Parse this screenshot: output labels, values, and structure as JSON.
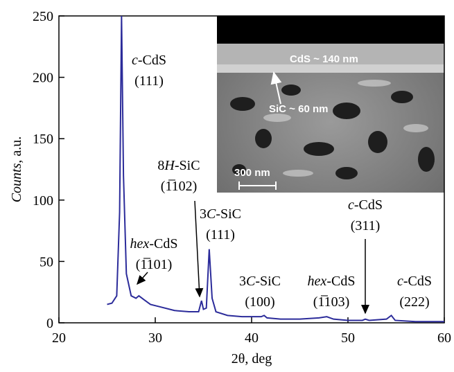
{
  "chart_data": {
    "type": "line",
    "x_label": "2θ, deg",
    "y_label": {
      "italic": "Counts",
      "post": ", a.u."
    },
    "x": [
      25,
      25.5,
      26,
      26.3,
      26.5,
      26.7,
      27,
      27.5,
      28,
      28.3,
      28.8,
      29.5,
      30.5,
      32,
      33.5,
      34.5,
      34.8,
      35.0,
      35.3,
      35.6,
      35.9,
      36.3,
      37.5,
      39,
      41,
      41.3,
      41.6,
      43,
      45,
      47,
      47.8,
      48.5,
      50,
      51.5,
      51.8,
      52.2,
      54,
      54.5,
      54.9,
      57,
      60
    ],
    "series": [
      {
        "color": "#2b2b9a",
        "values": [
          15,
          16,
          22,
          90,
          250,
          120,
          40,
          22,
          20,
          22,
          19,
          15,
          13,
          10,
          9,
          9,
          18,
          11,
          12,
          60,
          20,
          9,
          6,
          5,
          5,
          6,
          4,
          3,
          3,
          4,
          5,
          3,
          2,
          2,
          3,
          2,
          3,
          6,
          2,
          1,
          1
        ]
      }
    ],
    "xlim": [
      20,
      60
    ],
    "xticks": [
      20,
      30,
      40,
      50,
      60
    ],
    "ylim": [
      0,
      250
    ],
    "yticks": [
      0,
      50,
      100,
      150,
      200,
      250
    ],
    "annotations": [
      {
        "italic": "c",
        "post": "-CdS",
        "hkl": "(111)"
      },
      {
        "italic": "hex",
        "post": "-CdS",
        "hkl": "(1̅101)"
      },
      {
        "pre": "8",
        "italic": "H",
        "post": "-SiC",
        "hkl": "(1̅102)"
      },
      {
        "pre": "3",
        "italic": "C",
        "post": "-SiC",
        "hkl": "(111)"
      },
      {
        "pre": "3",
        "italic": "C",
        "post": "-SiC",
        "hkl": "(100)"
      },
      {
        "italic": "hex",
        "post": "-CdS",
        "hkl": "(1̅103)"
      },
      {
        "italic": "c",
        "post": "-CdS",
        "hkl": "(311)"
      },
      {
        "italic": "c",
        "post": "-CdS",
        "hkl": "(222)"
      }
    ],
    "inset": {
      "labels": [
        "CdS ~ 140 nm",
        "SiC ~ 60 nm"
      ],
      "scale_bar": "300 nm"
    }
  }
}
